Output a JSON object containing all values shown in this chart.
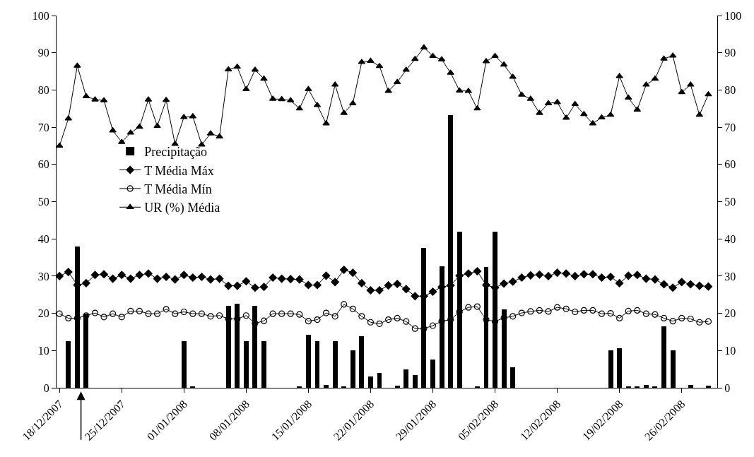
{
  "chart_data": {
    "type": "line",
    "x": [
      "2007-12-18",
      "2007-12-19",
      "2007-12-20",
      "2007-12-21",
      "2007-12-22",
      "2007-12-23",
      "2007-12-24",
      "2007-12-25",
      "2007-12-26",
      "2007-12-27",
      "2007-12-28",
      "2007-12-29",
      "2007-12-30",
      "2007-12-31",
      "2008-01-01",
      "2008-01-02",
      "2008-01-03",
      "2008-01-04",
      "2008-01-05",
      "2008-01-06",
      "2008-01-07",
      "2008-01-08",
      "2008-01-09",
      "2008-01-10",
      "2008-01-11",
      "2008-01-12",
      "2008-01-13",
      "2008-01-14",
      "2008-01-15",
      "2008-01-16",
      "2008-01-17",
      "2008-01-18",
      "2008-01-19",
      "2008-01-20",
      "2008-01-21",
      "2008-01-22",
      "2008-01-23",
      "2008-01-24",
      "2008-01-25",
      "2008-01-26",
      "2008-01-27",
      "2008-01-28",
      "2008-01-29",
      "2008-01-30",
      "2008-01-31",
      "2008-02-01",
      "2008-02-02",
      "2008-02-03",
      "2008-02-04",
      "2008-02-05",
      "2008-02-06",
      "2008-02-07",
      "2008-02-08",
      "2008-02-09",
      "2008-02-10",
      "2008-02-11",
      "2008-02-12",
      "2008-02-13",
      "2008-02-14",
      "2008-02-15",
      "2008-02-16",
      "2008-02-17",
      "2008-02-18",
      "2008-02-19",
      "2008-02-20",
      "2008-02-21",
      "2008-02-22",
      "2008-02-23",
      "2008-02-24",
      "2008-02-25",
      "2008-02-26",
      "2008-02-27",
      "2008-02-28",
      "2008-02-29"
    ],
    "series": [
      {
        "name": "Precipitação",
        "type": "bar",
        "color": "#000000",
        "values": [
          0,
          12.5,
          38,
          20,
          0,
          0,
          0,
          0,
          0,
          0,
          0,
          0,
          0,
          0,
          12.5,
          0.3,
          0,
          0,
          0,
          22,
          22.5,
          12.5,
          22,
          12.5,
          0,
          0,
          0,
          0.3,
          14.3,
          12.5,
          0.8,
          12.5,
          0.2,
          10,
          13.8,
          3.1,
          3.9,
          0,
          0.5,
          5,
          3.4,
          37.5,
          7.5,
          32.6,
          73.3,
          42,
          0,
          0.3,
          32.4,
          42,
          21,
          5.5,
          0,
          0,
          0,
          0,
          0,
          0,
          0,
          0,
          0,
          0,
          10,
          10.7,
          0.3,
          0.3,
          0.8,
          0.3,
          16.6,
          10,
          0,
          0.8,
          0,
          0.5
        ]
      },
      {
        "name": "T Média Máx",
        "color": "#000000",
        "marker": "diamond",
        "values": [
          30,
          31.1,
          27.6,
          28.1,
          30.3,
          30.5,
          29.3,
          30.3,
          29.3,
          30.3,
          30.7,
          29.3,
          29.8,
          29.1,
          30.3,
          29.6,
          29.8,
          29.1,
          29.3,
          27.4,
          27.4,
          28.6,
          26.9,
          27.1,
          29.6,
          29.3,
          29.2,
          29.1,
          27.6,
          27.6,
          30.1,
          28.4,
          31.7,
          30.9,
          28.1,
          26.2,
          26.2,
          27.5,
          27.9,
          26.5,
          24.6,
          24.6,
          25.8,
          27.1,
          27.5,
          30.1,
          30.7,
          31.3,
          27.6,
          26.9,
          28,
          28.5,
          29.6,
          30.2,
          30.4,
          30,
          30.9,
          30.7,
          30,
          30.5,
          30.5,
          29.6,
          29.8,
          28.1,
          30.1,
          30.3,
          29.3,
          29.1,
          27.8,
          26.9,
          28.4,
          27.8,
          27.4,
          27.2
        ]
      },
      {
        "name": "T Média Mín",
        "color": "#000000",
        "marker": "circle",
        "values": [
          19.9,
          18.7,
          18.7,
          19.4,
          20.1,
          19,
          19.9,
          19,
          20.6,
          20.6,
          19.9,
          19.9,
          21.1,
          19.9,
          20.4,
          19.9,
          19.9,
          19.2,
          19.4,
          18.5,
          18.5,
          19.4,
          17.3,
          18,
          19.9,
          19.9,
          19.9,
          19.7,
          17.9,
          18.3,
          20.1,
          19.2,
          22.4,
          21.2,
          19.2,
          17.6,
          17.2,
          18.3,
          18.7,
          17.8,
          15.9,
          15.9,
          16.7,
          17.9,
          18.3,
          20.4,
          21.6,
          21.8,
          18.3,
          17.8,
          18.8,
          19.2,
          20.1,
          20.5,
          20.8,
          20.5,
          21.6,
          21.2,
          20.4,
          20.8,
          20.8,
          19.9,
          20,
          18.7,
          20.6,
          20.8,
          19.9,
          19.7,
          18.7,
          17.9,
          18.7,
          18.5,
          17.6,
          17.8
        ]
      },
      {
        "name": "UR (%) Média",
        "color": "#000000",
        "marker": "triangle",
        "values": [
          65,
          72.3,
          86.5,
          78.3,
          77.4,
          77.2,
          69.1,
          66,
          68.5,
          70.1,
          77.4,
          70.3,
          77.3,
          65.5,
          72.7,
          72.9,
          65.3,
          68.3,
          67.5,
          85.5,
          86.2,
          80.2,
          85.4,
          83,
          77.6,
          77.5,
          77.2,
          75,
          80.2,
          75.9,
          71,
          81.4,
          73.8,
          76.4,
          87.5,
          87.8,
          86.4,
          79.7,
          82.1,
          85.4,
          88.3,
          91.4,
          89.1,
          88.2,
          84.6,
          79.8,
          79.7,
          75,
          87.7,
          89.1,
          86.8,
          83.5,
          78.7,
          77.6,
          73.8,
          76.4,
          76.7,
          72.5,
          76.2,
          73.5,
          71,
          72.6,
          73.3,
          83.7,
          77.9,
          74.7,
          81.4,
          83,
          88.4,
          89.2,
          79.4,
          81.4,
          73.3,
          78.8
        ]
      }
    ],
    "xlim": [
      "2007-12-17T16:00",
      "2008-03-01T00:00"
    ],
    "xticks": [
      {
        "value": "2007-12-18",
        "label": "18/12/2007"
      },
      {
        "value": "2007-12-25",
        "label": "25/12/2007"
      },
      {
        "value": "2008-01-01",
        "label": "01/01/2008"
      },
      {
        "value": "2008-01-08",
        "label": "08/01/2008"
      },
      {
        "value": "2008-01-15",
        "label": "15/01/2008"
      },
      {
        "value": "2008-01-22",
        "label": "22/01/2008"
      },
      {
        "value": "2008-01-29",
        "label": "29/01/2008"
      },
      {
        "value": "2008-02-05",
        "label": "05/02/2008"
      },
      {
        "value": "2008-02-12",
        "label": "12/02/2008"
      },
      {
        "value": "2008-02-19",
        "label": "19/02/2008"
      },
      {
        "value": "2008-02-26",
        "label": "26/02/2008"
      }
    ],
    "ylim": [
      0,
      100
    ],
    "yticks": [
      0,
      10,
      20,
      30,
      40,
      50,
      60,
      70,
      80,
      90,
      100
    ],
    "y2lim": [
      0,
      100
    ],
    "y2ticks": [
      0,
      10,
      20,
      30,
      40,
      50,
      60,
      70,
      80,
      90,
      100
    ],
    "legend": "left"
  }
}
